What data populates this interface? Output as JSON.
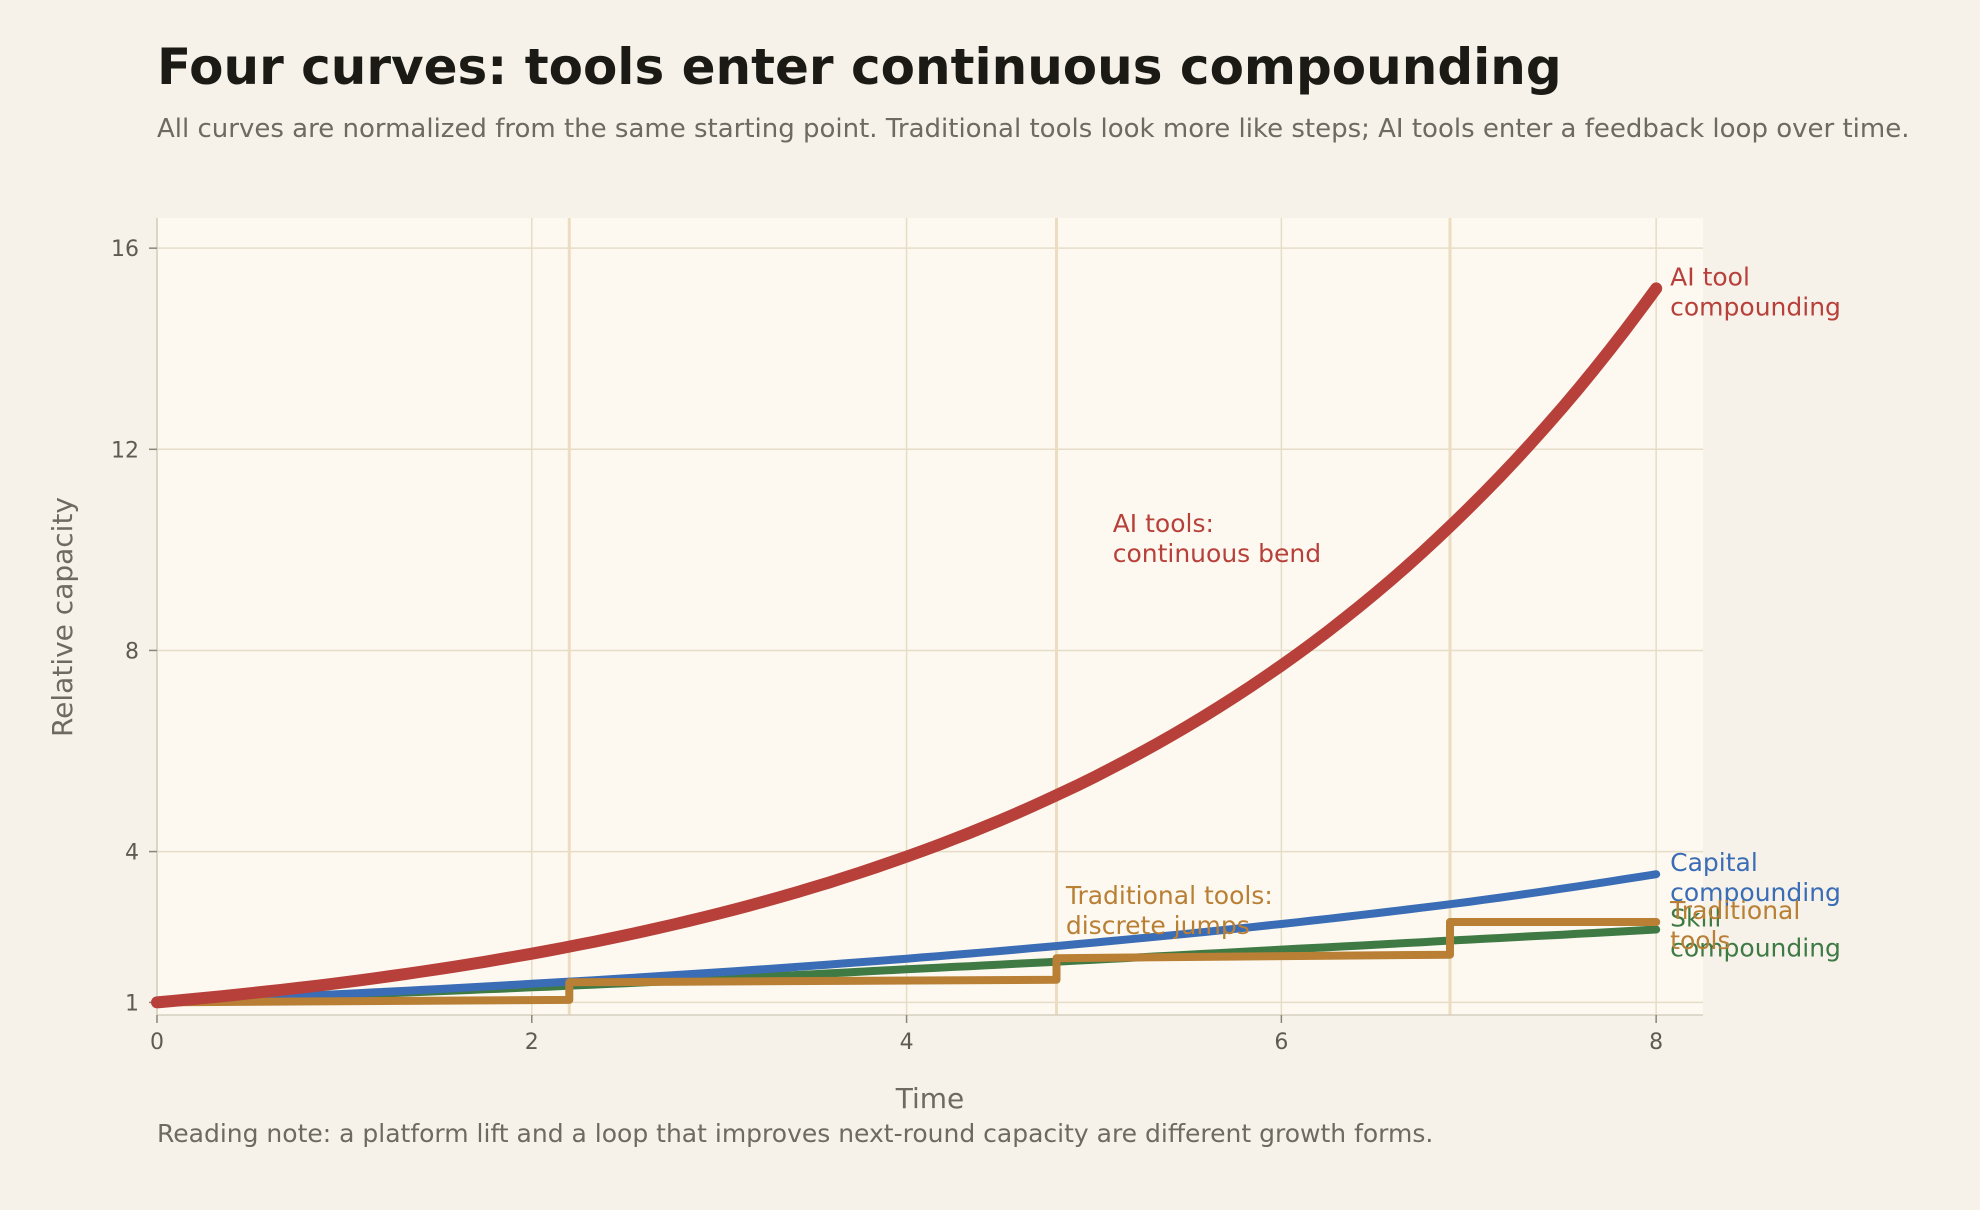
{
  "chart_data": {
    "type": "line",
    "title": "Four curves: tools enter continuous compounding",
    "subtitle": "All curves are normalized from the same starting point. Traditional tools look more like steps; AI tools enter a feedback loop over time.",
    "xlabel": "Time",
    "ylabel": "Relative capacity",
    "xlim": [
      0,
      8.25
    ],
    "ylim": [
      0.75,
      16.6
    ],
    "x_ticks": [
      0,
      2,
      4,
      6,
      8
    ],
    "y_ticks": [
      1,
      4,
      8,
      12,
      16
    ],
    "grid": true,
    "legend": "direct labels at right end of each line",
    "step_markers_x": [
      2.2,
      4.8,
      6.9
    ],
    "series": [
      {
        "name": "Skill compounding",
        "label_lines": [
          "Skill",
          "compounding"
        ],
        "color": "#3f7a45",
        "style": "line",
        "x": [
          0,
          1,
          2,
          3,
          4,
          5,
          6,
          7,
          8
        ],
        "y": [
          1.0,
          1.15,
          1.3,
          1.47,
          1.66,
          1.85,
          2.05,
          2.25,
          2.45
        ]
      },
      {
        "name": "Capital compounding",
        "label_lines": [
          "Capital",
          "compounding"
        ],
        "color": "#3a6db5",
        "style": "line",
        "x": [
          0,
          1,
          2,
          3,
          4,
          5,
          6,
          7,
          8
        ],
        "y": [
          1.0,
          1.17,
          1.37,
          1.6,
          1.87,
          2.19,
          2.56,
          3.0,
          3.55
        ]
      },
      {
        "name": "Traditional tools",
        "label_lines": [
          "Traditional",
          "tools"
        ],
        "color": "#b87f35",
        "style": "step",
        "x": [
          0,
          2.2,
          2.2,
          4.8,
          4.8,
          6.9,
          6.9,
          8
        ],
        "y": [
          1.0,
          1.05,
          1.4,
          1.45,
          1.88,
          1.95,
          2.6,
          2.6
        ]
      },
      {
        "name": "AI tool compounding",
        "label_lines": [
          "AI tool",
          "compounding"
        ],
        "color": "#b8403b",
        "style": "line",
        "x": [
          0,
          1,
          2,
          3,
          4,
          5,
          6,
          7,
          8
        ],
        "y": [
          1.0,
          1.4,
          1.97,
          2.77,
          3.9,
          5.48,
          7.7,
          10.83,
          15.2
        ]
      }
    ],
    "annotations": [
      {
        "lines": [
          "AI tools:",
          "continuous bend"
        ],
        "x": 5.1,
        "y": 10.0,
        "color": "#b8403b"
      },
      {
        "lines": [
          "Traditional tools:",
          "discrete jumps"
        ],
        "x": 4.85,
        "y": 2.6,
        "color": "#b87f35"
      }
    ]
  },
  "footnote": "Reading note: a platform lift and a loop that improves next-round capacity are different growth forms."
}
